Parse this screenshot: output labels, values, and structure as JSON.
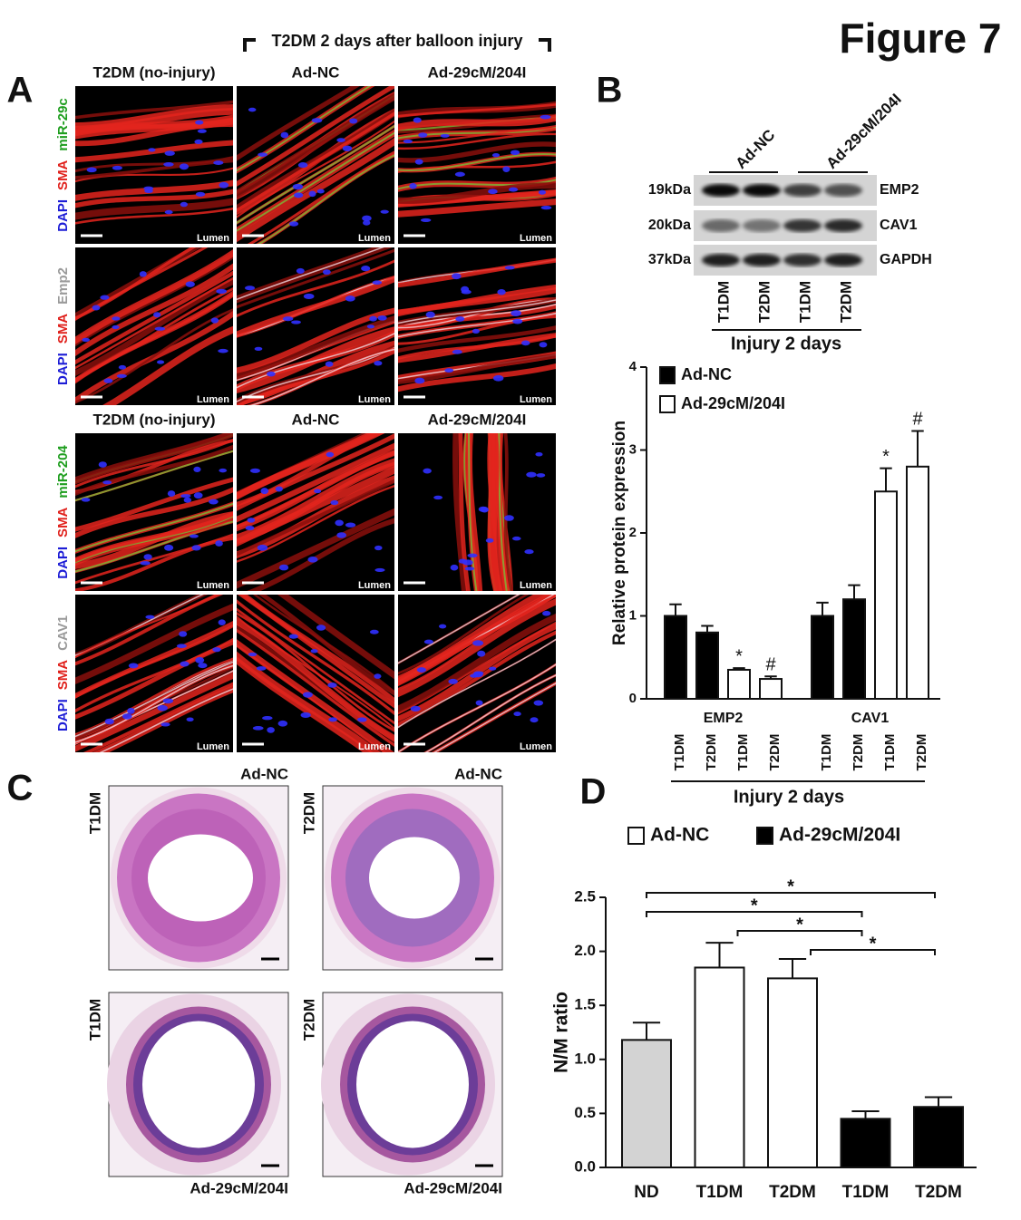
{
  "figure_title": "Figure 7",
  "panel_labels": [
    "A",
    "B",
    "C",
    "D"
  ],
  "panel_a": {
    "header": "T2DM 2 days after balloon injury",
    "column_titles": [
      [
        "T2DM (no-injury)",
        "Ad-NC",
        "Ad-29cM/204I"
      ],
      [
        "T2DM (no-injury)",
        "Ad-NC",
        "Ad-29cM/204I"
      ]
    ],
    "rows": [
      {
        "stains": [
          "miR-29c",
          "SMA",
          "DAPI"
        ],
        "colors": [
          "#1f9e1f",
          "#e0201b",
          "#1d1dd6"
        ]
      },
      {
        "stains": [
          "Emp2",
          "SMA",
          "DAPI"
        ],
        "colors": [
          "#9a9a9a",
          "#e0201b",
          "#1d1dd6"
        ]
      },
      {
        "stains": [
          "miR-204",
          "SMA",
          "DAPI"
        ],
        "colors": [
          "#1f9e1f",
          "#e0201b",
          "#1d1dd6"
        ]
      },
      {
        "stains": [
          "CAV1",
          "SMA",
          "DAPI"
        ],
        "colors": [
          "#9a9a9a",
          "#e0201b",
          "#1d1dd6"
        ]
      }
    ],
    "lumen_label": "Lumen"
  },
  "panel_b_blot": {
    "groups": [
      "Ad-NC",
      "Ad-29cM/204I"
    ],
    "proteins": [
      {
        "size": "19kDa",
        "name": "EMP2"
      },
      {
        "size": "20kDa",
        "name": "CAV1"
      },
      {
        "size": "37kDa",
        "name": "GAPDH"
      }
    ],
    "lanes": [
      "T1DM",
      "T2DM",
      "T1DM",
      "T2DM"
    ],
    "footer": "Injury 2 days"
  },
  "panel_c": {
    "images": [
      {
        "row_label": "T1DM",
        "title": "Ad-NC"
      },
      {
        "row_label": "T2DM",
        "title": "Ad-NC"
      },
      {
        "row_label": "T1DM",
        "title": "Ad-29cM/204I"
      },
      {
        "row_label": "T2DM",
        "title": "Ad-29cM/204I"
      }
    ]
  },
  "chart_data": [
    {
      "type": "bar",
      "y_label": "Relative protein expression",
      "x_label": "Injury 2 days",
      "group_labels": [
        "EMP2",
        "CAV1"
      ],
      "categories": [
        "T1DM",
        "T2DM",
        "T1DM",
        "T2DM",
        "T1DM",
        "T2DM",
        "T1DM",
        "T2DM"
      ],
      "series": [
        {
          "name": "Ad-NC",
          "color": "#000000",
          "values": [
            1.0,
            0.8,
            null,
            null,
            1.0,
            1.2,
            null,
            null
          ],
          "errors": [
            0.14,
            0.08,
            null,
            null,
            0.16,
            0.17,
            null,
            null
          ]
        },
        {
          "name": "Ad-29cM/204I",
          "color": "#ffffff",
          "values": [
            null,
            null,
            0.35,
            0.24,
            null,
            null,
            2.5,
            2.8
          ],
          "errors": [
            null,
            null,
            0.02,
            0.03,
            null,
            null,
            0.28,
            0.43
          ],
          "significance": [
            null,
            null,
            "*",
            "#",
            null,
            null,
            "*",
            "#"
          ]
        }
      ],
      "ylim": [
        0,
        4
      ],
      "yticks": [
        0,
        1,
        2,
        3,
        4
      ],
      "legend": "upper left"
    },
    {
      "type": "bar",
      "y_label": "N/M ratio",
      "categories": [
        "ND",
        "T1DM",
        "T2DM",
        "T1DM",
        "T2DM"
      ],
      "values": [
        1.18,
        1.85,
        1.75,
        0.45,
        0.56
      ],
      "errors": [
        0.16,
        0.23,
        0.18,
        0.07,
        0.09
      ],
      "colors": [
        "#d3d3d3",
        "#ffffff",
        "#ffffff",
        "#000000",
        "#000000"
      ],
      "legend": [
        {
          "name": "Ad-NC",
          "color": "#ffffff"
        },
        {
          "name": "Ad-29cM/204I",
          "color": "#000000"
        }
      ],
      "comparisons": [
        {
          "from": 0,
          "to": 4,
          "label": "*"
        },
        {
          "from": 0,
          "to": 3,
          "label": "*"
        },
        {
          "from": 1,
          "to": 3,
          "label": "*"
        },
        {
          "from": 2,
          "to": 4,
          "label": "*"
        }
      ],
      "ylim": [
        0,
        2.5
      ],
      "yticks": [
        {
          "value": 0,
          "label": "0.0"
        },
        0.5,
        {
          "value": 1,
          "label": "1.0"
        },
        1.5,
        {
          "value": 2,
          "label": "2.0"
        },
        2.5
      ]
    }
  ]
}
